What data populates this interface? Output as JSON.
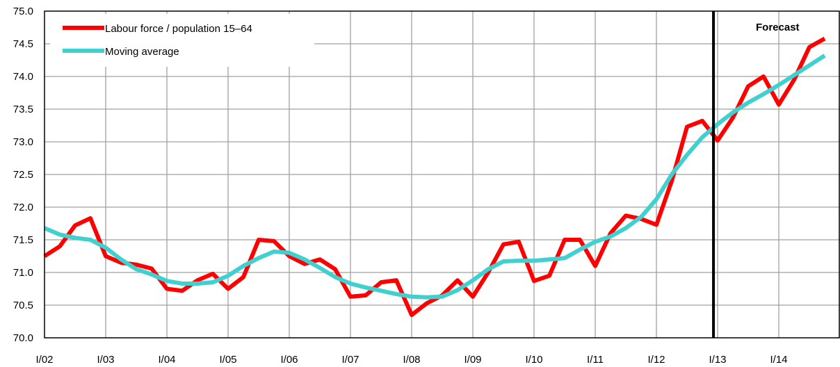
{
  "chart_data": {
    "type": "line",
    "ylim": [
      70.0,
      75.0
    ],
    "yticks": [
      "75.0",
      "74.5",
      "74.0",
      "73.5",
      "73.0",
      "72.5",
      "72.0",
      "71.5",
      "71.0",
      "70.5",
      "70.0"
    ],
    "xticks": [
      "I/02",
      "I/03",
      "I/04",
      "I/05",
      "I/06",
      "I/07",
      "I/08",
      "I/09",
      "I/10",
      "I/11",
      "I/12",
      "I/13",
      "I/14"
    ],
    "x_quarter_start": 0,
    "grid": true,
    "legend_position": "top-left",
    "annotation": "Forecast",
    "forecast_quarter": 43,
    "series": [
      {
        "name": "Labour force / population 15–64",
        "color": "#ff0000",
        "values": [
          71.25,
          71.4,
          71.72,
          71.83,
          71.25,
          71.15,
          71.12,
          71.06,
          70.75,
          70.72,
          70.88,
          70.98,
          70.75,
          70.93,
          71.5,
          71.48,
          71.25,
          71.13,
          71.2,
          71.05,
          70.63,
          70.65,
          70.85,
          70.88,
          70.35,
          70.53,
          70.65,
          70.88,
          70.63,
          71.0,
          71.43,
          71.47,
          70.87,
          70.95,
          71.5,
          71.5,
          71.1,
          71.6,
          71.87,
          71.82,
          71.73,
          72.4,
          73.23,
          73.32,
          73.02,
          73.37,
          73.85,
          74.0,
          73.57,
          73.95,
          74.45,
          74.58
        ]
      },
      {
        "name": "Moving average",
        "color": "#40d0d0",
        "values": [
          71.68,
          71.58,
          71.53,
          71.5,
          71.38,
          71.2,
          71.05,
          70.97,
          70.87,
          70.83,
          70.83,
          70.85,
          70.95,
          71.1,
          71.22,
          71.32,
          71.3,
          71.2,
          71.07,
          70.93,
          70.83,
          70.77,
          70.72,
          70.67,
          70.63,
          70.62,
          70.63,
          70.73,
          70.88,
          71.05,
          71.17,
          71.18,
          71.18,
          71.2,
          71.22,
          71.35,
          71.47,
          71.55,
          71.68,
          71.85,
          72.12,
          72.5,
          72.8,
          73.07,
          73.27,
          73.45,
          73.6,
          73.73,
          73.87,
          74.02,
          74.17,
          74.32
        ]
      }
    ]
  }
}
